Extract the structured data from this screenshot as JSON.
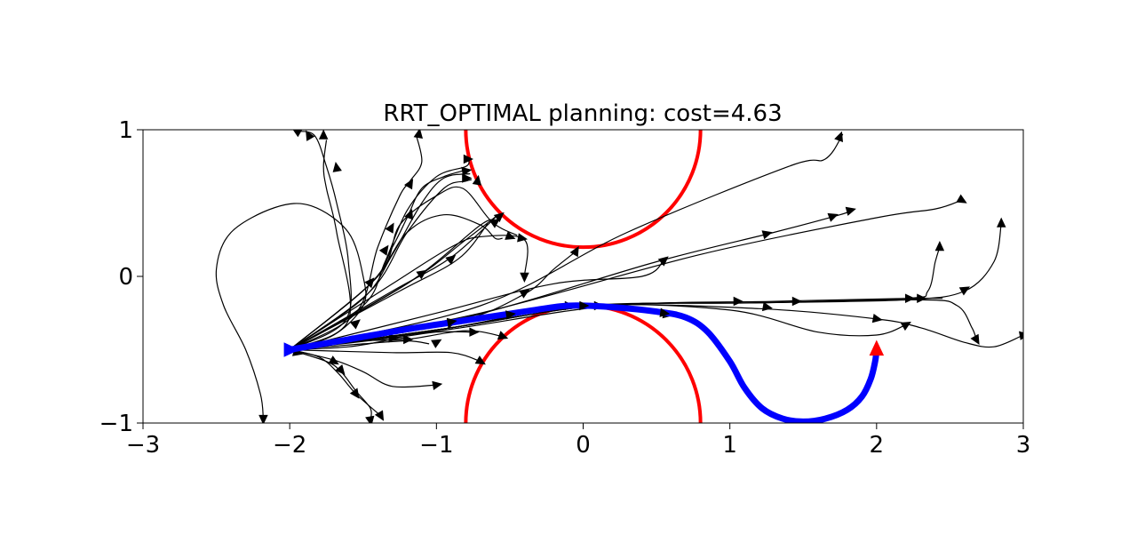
{
  "chart_data": {
    "type": "line",
    "title": "RRT_OPTIMAL planning: cost=4.63",
    "xlabel": "",
    "ylabel": "",
    "xlim": [
      -3,
      3
    ],
    "ylim": [
      -1,
      1
    ],
    "aspect": "equal",
    "grid": false,
    "xticks": [
      -3,
      -2,
      -1,
      0,
      1,
      2,
      3
    ],
    "yticks": [
      -1,
      0,
      1
    ],
    "xtick_labels": [
      "−3",
      "−2",
      "−1",
      "0",
      "1",
      "2",
      "3"
    ],
    "ytick_labels": [
      "−1",
      "0",
      "1"
    ],
    "colors": {
      "tree": "#000000",
      "path": "#0000ff",
      "obstacle": "#ff0000",
      "goal": "#ff0000"
    },
    "obstacles": [
      {
        "cx": 0,
        "cy": 1,
        "r": 0.8
      },
      {
        "cx": 0,
        "cy": -1,
        "r": 0.8
      }
    ],
    "start": {
      "x": -2,
      "y": -0.5,
      "heading_deg": 0
    },
    "goal": {
      "x": 2,
      "y": -0.5,
      "heading_deg": 90
    },
    "solution_path": [
      [
        -2.0,
        -0.5
      ],
      [
        -1.6,
        -0.43
      ],
      [
        -1.2,
        -0.36
      ],
      [
        -0.8,
        -0.3
      ],
      [
        -0.4,
        -0.24
      ],
      [
        -0.1,
        -0.2
      ],
      [
        0.2,
        -0.21
      ],
      [
        0.5,
        -0.24
      ],
      [
        0.7,
        -0.28
      ],
      [
        0.85,
        -0.38
      ],
      [
        1.0,
        -0.58
      ],
      [
        1.1,
        -0.76
      ],
      [
        1.22,
        -0.9
      ],
      [
        1.36,
        -0.97
      ],
      [
        1.5,
        -0.99
      ],
      [
        1.65,
        -0.97
      ],
      [
        1.8,
        -0.91
      ],
      [
        1.9,
        -0.82
      ],
      [
        1.96,
        -0.7
      ],
      [
        1.99,
        -0.58
      ],
      [
        2.0,
        -0.5
      ]
    ],
    "tree_edges": [
      [
        [
          -2,
          -0.5
        ],
        [
          -1.7,
          -0.4
        ],
        [
          -1.5,
          -0.2
        ],
        [
          -1.5,
          0.0
        ],
        [
          -1.6,
          0.3
        ],
        [
          -1.85,
          0.48
        ],
        [
          -2.1,
          0.47
        ],
        [
          -2.4,
          0.3
        ],
        [
          -2.5,
          0.05
        ],
        [
          -2.45,
          -0.2
        ],
        [
          -2.3,
          -0.5
        ],
        [
          -2.2,
          -0.8
        ],
        [
          -2.18,
          -0.97
        ]
      ],
      [
        [
          -2,
          -0.5
        ],
        [
          -1.62,
          -0.3
        ],
        [
          -1.6,
          0.1
        ],
        [
          -1.68,
          0.5
        ],
        [
          -1.75,
          0.75
        ],
        [
          -1.83,
          0.96
        ],
        [
          -1.95,
          0.99
        ]
      ],
      [
        [
          -2,
          -0.5
        ],
        [
          -1.6,
          -0.3
        ],
        [
          -1.68,
          0.3
        ],
        [
          -1.75,
          0.6
        ],
        [
          -1.77,
          0.75
        ],
        [
          -1.75,
          0.93
        ]
      ],
      [
        [
          -2,
          -0.5
        ],
        [
          -1.55,
          -0.25
        ],
        [
          -1.4,
          0.2
        ],
        [
          -1.25,
          0.55
        ],
        [
          -1.18,
          0.65
        ],
        [
          -1.1,
          0.78
        ],
        [
          -1.14,
          0.97
        ]
      ],
      [
        [
          -2,
          -0.5
        ],
        [
          -1.5,
          -0.2
        ],
        [
          -1.35,
          0.1
        ],
        [
          -1.2,
          0.45
        ],
        [
          -1.0,
          0.68
        ],
        [
          -0.8,
          0.75
        ],
        [
          -0.78,
          0.8
        ]
      ],
      [
        [
          -2,
          -0.5
        ],
        [
          -1.5,
          -0.15
        ],
        [
          -1.3,
          0.15
        ],
        [
          -1.1,
          0.5
        ],
        [
          -0.95,
          0.67
        ],
        [
          -0.77,
          0.7
        ]
      ],
      [
        [
          -2,
          -0.5
        ],
        [
          -1.45,
          -0.1
        ],
        [
          -1.2,
          0.3
        ],
        [
          -0.95,
          0.6
        ],
        [
          -0.8,
          0.65
        ],
        [
          -0.76,
          0.66
        ]
      ],
      [
        [
          -2,
          -0.5
        ],
        [
          -1.45,
          -0.05
        ],
        [
          -1.3,
          0.2
        ],
        [
          -1.2,
          0.4
        ],
        [
          -1.1,
          0.6
        ],
        [
          -0.95,
          0.68
        ],
        [
          -0.82,
          0.72
        ]
      ],
      [
        [
          -2,
          -0.5
        ],
        [
          -1.45,
          -0.05
        ],
        [
          -1.2,
          0.3
        ],
        [
          -0.95,
          0.42
        ],
        [
          -0.7,
          0.35
        ],
        [
          -0.6,
          0.26
        ],
        [
          -0.55,
          0.26
        ]
      ],
      [
        [
          -2,
          -0.5
        ],
        [
          -1.4,
          0.0
        ],
        [
          -1.25,
          0.35
        ],
        [
          -1.0,
          0.55
        ],
        [
          -0.82,
          0.6
        ],
        [
          -0.62,
          0.37
        ],
        [
          -0.45,
          0.28
        ]
      ],
      [
        [
          -2,
          -0.5
        ],
        [
          -1.3,
          -0.1
        ],
        [
          -0.9,
          0.13
        ],
        [
          -0.6,
          0.4
        ]
      ],
      [
        [
          -2,
          -0.5
        ],
        [
          -1.2,
          -0.05
        ],
        [
          -0.8,
          0.25
        ],
        [
          -0.58,
          0.42
        ]
      ],
      [
        [
          -2,
          -0.5
        ],
        [
          -1.2,
          -0.05
        ],
        [
          -0.7,
          0.35
        ],
        [
          -0.6,
          0.37
        ]
      ],
      [
        [
          -2,
          -0.5
        ],
        [
          -1.3,
          -0.05
        ],
        [
          -0.9,
          0.2
        ],
        [
          -0.7,
          0.27
        ],
        [
          -0.4,
          0.25
        ],
        [
          -0.4,
          0.0
        ]
      ],
      [
        [
          -2,
          -0.5
        ],
        [
          -1.25,
          -0.1
        ],
        [
          -0.85,
          0.12
        ],
        [
          -0.65,
          0.36
        ]
      ],
      [
        [
          -2,
          -0.5
        ],
        [
          -0.9,
          -0.32
        ],
        [
          -0.4,
          -0.12
        ],
        [
          -0.2,
          0.05
        ],
        [
          -0.05,
          0.17
        ]
      ],
      [
        [
          -2,
          -0.5
        ],
        [
          -1.0,
          -0.25
        ],
        [
          -0.2,
          -0.05
        ],
        [
          0.4,
          0.0
        ],
        [
          0.55,
          0.11
        ]
      ],
      [
        [
          -2,
          -0.5
        ],
        [
          -0.7,
          -0.2
        ],
        [
          0.3,
          0.3
        ],
        [
          1.4,
          0.75
        ],
        [
          1.65,
          0.8
        ],
        [
          1.77,
          0.97
        ]
      ],
      [
        [
          -2,
          -0.5
        ],
        [
          -0.8,
          -0.28
        ],
        [
          0.5,
          0.1
        ],
        [
          1.3,
          0.3
        ],
        [
          1.75,
          0.42
        ],
        [
          1.82,
          0.45
        ]
      ],
      [
        [
          -2,
          -0.5
        ],
        [
          -0.7,
          -0.25
        ],
        [
          0.8,
          0.15
        ],
        [
          2.0,
          0.4
        ],
        [
          2.4,
          0.46
        ],
        [
          2.58,
          0.52
        ]
      ],
      [
        [
          -2,
          -0.5
        ],
        [
          -0.9,
          -0.36
        ],
        [
          0.2,
          -0.2
        ],
        [
          1.3,
          -0.17
        ],
        [
          2.2,
          -0.15
        ],
        [
          2.45,
          -0.15
        ]
      ],
      [
        [
          -2,
          -0.5
        ],
        [
          -0.9,
          -0.35
        ],
        [
          0.1,
          -0.2
        ],
        [
          1.2,
          -0.18
        ],
        [
          2.2,
          -0.16
        ],
        [
          2.6,
          -0.1
        ],
        [
          2.8,
          0.1
        ],
        [
          2.85,
          0.36
        ]
      ],
      [
        [
          -2,
          -0.5
        ],
        [
          -0.9,
          -0.35
        ],
        [
          0.1,
          -0.2
        ],
        [
          1.2,
          -0.18
        ],
        [
          2.2,
          -0.15
        ],
        [
          2.35,
          -0.1
        ],
        [
          2.4,
          0.1
        ],
        [
          2.43,
          0.2
        ]
      ],
      [
        [
          -2,
          -0.5
        ],
        [
          -0.9,
          -0.35
        ],
        [
          0.0,
          -0.2
        ],
        [
          1.2,
          -0.18
        ],
        [
          2.3,
          -0.16
        ],
        [
          2.55,
          -0.2
        ],
        [
          2.65,
          -0.35
        ],
        [
          2.68,
          -0.43
        ]
      ],
      [
        [
          -2,
          -0.5
        ],
        [
          -0.9,
          -0.35
        ],
        [
          0.0,
          -0.2
        ],
        [
          1.0,
          -0.23
        ],
        [
          1.6,
          -0.38
        ],
        [
          2.0,
          -0.4
        ],
        [
          2.2,
          -0.33
        ]
      ],
      [
        [
          -2,
          -0.5
        ],
        [
          -0.9,
          -0.35
        ],
        [
          0.0,
          -0.2
        ],
        [
          1.2,
          -0.22
        ],
        [
          2.0,
          -0.29
        ],
        [
          2.3,
          -0.35
        ],
        [
          2.6,
          -0.45
        ],
        [
          2.8,
          -0.48
        ],
        [
          3.0,
          -0.4
        ]
      ],
      [
        [
          -2,
          -0.5
        ],
        [
          -1.3,
          -0.42
        ],
        [
          -1.0,
          -0.38
        ],
        [
          -0.75,
          -0.38
        ]
      ],
      [
        [
          -2,
          -0.5
        ],
        [
          -1.5,
          -0.44
        ],
        [
          -1.2,
          -0.43
        ],
        [
          -0.8,
          -0.37
        ],
        [
          -0.55,
          -0.41
        ]
      ],
      [
        [
          -2,
          -0.5
        ],
        [
          -1.6,
          -0.48
        ],
        [
          -1.3,
          -0.43
        ],
        [
          -1.22,
          -0.42
        ]
      ],
      [
        [
          -2,
          -0.5
        ],
        [
          -1.5,
          -0.46
        ],
        [
          -1.2,
          -0.44
        ],
        [
          -1.05,
          -0.46
        ]
      ],
      [
        [
          -2,
          -0.5
        ],
        [
          -1.3,
          -0.52
        ],
        [
          -0.9,
          -0.52
        ],
        [
          -0.7,
          -0.58
        ]
      ],
      [
        [
          -2,
          -0.5
        ],
        [
          -1.7,
          -0.57
        ],
        [
          -1.5,
          -0.65
        ],
        [
          -1.3,
          -0.75
        ],
        [
          -1.0,
          -0.74
        ]
      ],
      [
        [
          -2,
          -0.5
        ],
        [
          -1.75,
          -0.58
        ],
        [
          -1.65,
          -0.65
        ],
        [
          -1.55,
          -0.78
        ],
        [
          -1.45,
          -0.9
        ],
        [
          -1.45,
          -0.98
        ]
      ],
      [
        [
          -2,
          -0.5
        ],
        [
          -1.8,
          -0.55
        ],
        [
          -1.67,
          -0.66
        ],
        [
          -1.55,
          -0.8
        ],
        [
          -1.38,
          -0.95
        ]
      ]
    ],
    "tree_nodes": [
      {
        "x": -2.18,
        "y": -0.97,
        "deg": 270
      },
      {
        "x": -1.95,
        "y": 0.99,
        "deg": 150
      },
      {
        "x": -1.87,
        "y": 0.96,
        "deg": 120
      },
      {
        "x": -1.77,
        "y": 0.96,
        "deg": 90
      },
      {
        "x": -1.68,
        "y": 0.74,
        "deg": 100
      },
      {
        "x": -1.12,
        "y": 0.97,
        "deg": 80
      },
      {
        "x": -1.18,
        "y": 0.63,
        "deg": 60
      },
      {
        "x": -1.18,
        "y": 0.42,
        "deg": 70
      },
      {
        "x": -1.31,
        "y": 0.33,
        "deg": 60
      },
      {
        "x": -1.35,
        "y": 0.18,
        "deg": 55
      },
      {
        "x": -1.45,
        "y": -0.04,
        "deg": 50
      },
      {
        "x": -1.55,
        "y": -0.32,
        "deg": 40
      },
      {
        "x": -0.79,
        "y": 0.8,
        "deg": 0
      },
      {
        "x": -0.8,
        "y": 0.72,
        "deg": 10
      },
      {
        "x": -0.8,
        "y": 0.67,
        "deg": 0
      },
      {
        "x": -0.72,
        "y": 0.65,
        "deg": 80
      },
      {
        "x": -0.57,
        "y": 0.41,
        "deg": 40
      },
      {
        "x": -0.6,
        "y": 0.37,
        "deg": 35
      },
      {
        "x": -0.9,
        "y": 0.12,
        "deg": 40
      },
      {
        "x": -1.1,
        "y": 0.02,
        "deg": 35
      },
      {
        "x": -0.42,
        "y": 0.26,
        "deg": -10
      },
      {
        "x": -0.5,
        "y": 0.27,
        "deg": -20
      },
      {
        "x": -0.4,
        "y": 0.0,
        "deg": 270
      },
      {
        "x": -0.4,
        "y": -0.11,
        "deg": 30
      },
      {
        "x": -0.05,
        "y": 0.17,
        "deg": 60
      },
      {
        "x": 0.55,
        "y": 0.11,
        "deg": 40
      },
      {
        "x": 1.75,
        "y": 0.95,
        "deg": 70
      },
      {
        "x": 1.7,
        "y": 0.41,
        "deg": 20
      },
      {
        "x": 1.82,
        "y": 0.45,
        "deg": 15
      },
      {
        "x": 1.25,
        "y": 0.29,
        "deg": 15
      },
      {
        "x": 2.58,
        "y": 0.52,
        "deg": -30
      },
      {
        "x": 2.43,
        "y": 0.2,
        "deg": 90
      },
      {
        "x": 2.85,
        "y": 0.36,
        "deg": 90
      },
      {
        "x": 2.6,
        "y": -0.09,
        "deg": 30
      },
      {
        "x": 2.3,
        "y": -0.15,
        "deg": 0
      },
      {
        "x": 2.22,
        "y": -0.15,
        "deg": 0
      },
      {
        "x": 1.45,
        "y": -0.17,
        "deg": 0
      },
      {
        "x": 1.05,
        "y": -0.17,
        "deg": 0
      },
      {
        "x": 1.25,
        "y": -0.21,
        "deg": -10
      },
      {
        "x": 0.1,
        "y": -0.2,
        "deg": 0
      },
      {
        "x": -0.1,
        "y": -0.2,
        "deg": 0
      },
      {
        "x": 0.57,
        "y": -0.26,
        "deg": -10
      },
      {
        "x": 2.0,
        "y": -0.29,
        "deg": -10
      },
      {
        "x": 2.68,
        "y": -0.43,
        "deg": -60
      },
      {
        "x": 2.2,
        "y": -0.33,
        "deg": 30
      },
      {
        "x": 3.0,
        "y": -0.4,
        "deg": 10
      },
      {
        "x": -0.9,
        "y": -0.32,
        "deg": 10
      },
      {
        "x": -1.0,
        "y": -0.45,
        "deg": 30
      },
      {
        "x": -1.3,
        "y": -0.42,
        "deg": 0
      },
      {
        "x": -1.2,
        "y": -0.43,
        "deg": 0
      },
      {
        "x": -0.75,
        "y": -0.38,
        "deg": 0
      },
      {
        "x": -0.55,
        "y": -0.41,
        "deg": -20
      },
      {
        "x": -0.7,
        "y": -0.58,
        "deg": -30
      },
      {
        "x": -1.0,
        "y": -0.74,
        "deg": 10
      },
      {
        "x": -1.7,
        "y": -0.58,
        "deg": -30
      },
      {
        "x": -1.65,
        "y": -0.64,
        "deg": -50
      },
      {
        "x": -1.55,
        "y": -0.8,
        "deg": -55
      },
      {
        "x": -1.45,
        "y": -0.98,
        "deg": -80
      },
      {
        "x": -1.38,
        "y": -0.95,
        "deg": -60
      },
      {
        "x": -1.95,
        "y": -0.52,
        "deg": -15
      }
    ],
    "path_nodes": [
      {
        "x": -0.9,
        "y": -0.31,
        "deg": 10
      },
      {
        "x": -0.5,
        "y": -0.26,
        "deg": 8
      },
      {
        "x": 0.0,
        "y": -0.2,
        "deg": 0
      },
      {
        "x": 0.55,
        "y": -0.25,
        "deg": -8
      }
    ]
  }
}
